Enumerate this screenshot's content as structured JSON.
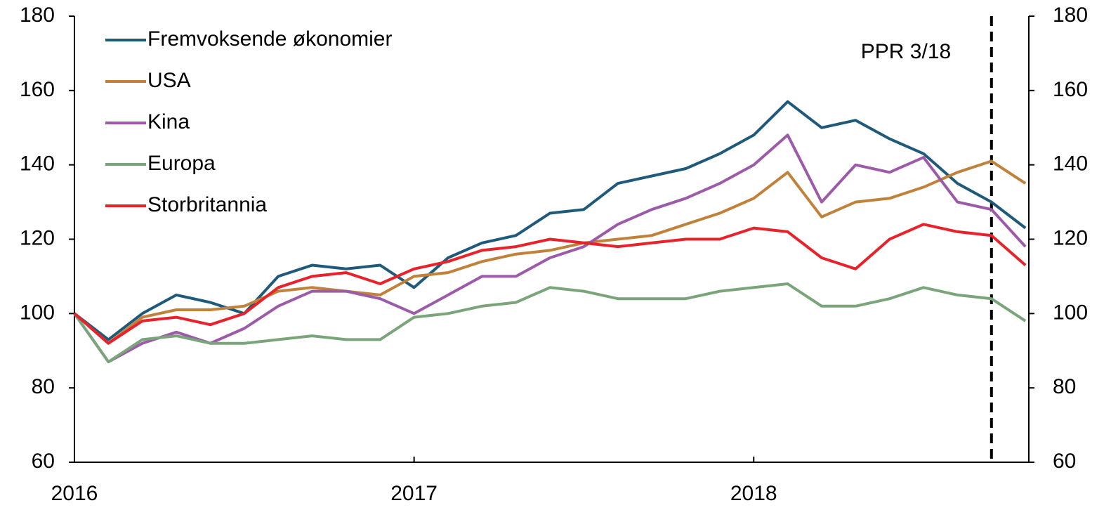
{
  "chart_data": {
    "type": "line",
    "x": [
      2016.0,
      2016.1,
      2016.2,
      2016.3,
      2016.4,
      2016.5,
      2016.6,
      2016.7,
      2016.8,
      2016.9,
      2017.0,
      2017.1,
      2017.2,
      2017.3,
      2017.4,
      2017.5,
      2017.6,
      2017.7,
      2017.8,
      2017.9,
      2018.0,
      2018.1,
      2018.2,
      2018.3,
      2018.4,
      2018.5,
      2018.6,
      2018.7,
      2018.8
    ],
    "series": [
      {
        "name": "Fremvoksende økonomier",
        "color": "#1f5a7a",
        "values": [
          100,
          93,
          100,
          105,
          103,
          100,
          110,
          113,
          112,
          113,
          107,
          115,
          119,
          121,
          127,
          128,
          135,
          137,
          139,
          143,
          148,
          157,
          150,
          152,
          147,
          143,
          135,
          130,
          123
        ]
      },
      {
        "name": "USA",
        "color": "#c0823a",
        "values": [
          100,
          92,
          99,
          101,
          101,
          102,
          106,
          107,
          106,
          105,
          110,
          111,
          114,
          116,
          117,
          119,
          120,
          121,
          124,
          127,
          131,
          138,
          126,
          130,
          131,
          134,
          138,
          141,
          135
        ]
      },
      {
        "name": "Kina",
        "color": "#9c5aa8",
        "values": [
          100,
          87,
          92,
          95,
          92,
          96,
          102,
          106,
          106,
          104,
          100,
          105,
          110,
          110,
          115,
          118,
          124,
          128,
          131,
          135,
          140,
          148,
          130,
          140,
          138,
          142,
          130,
          128,
          118
        ]
      },
      {
        "name": "Europa",
        "color": "#7aa57a",
        "values": [
          100,
          87,
          93,
          94,
          92,
          92,
          93,
          94,
          93,
          93,
          99,
          100,
          102,
          103,
          107,
          106,
          104,
          104,
          104,
          106,
          107,
          108,
          102,
          102,
          104,
          107,
          105,
          104,
          98
        ]
      },
      {
        "name": "Storbritannia",
        "color": "#e8222a",
        "values": [
          100,
          92,
          98,
          99,
          97,
          100,
          107,
          110,
          111,
          108,
          112,
          114,
          117,
          118,
          120,
          119,
          118,
          119,
          120,
          120,
          123,
          122,
          115,
          112,
          120,
          124,
          122,
          121,
          113
        ]
      }
    ],
    "xlim": [
      2016.0,
      2018.81
    ],
    "xticks": [
      2016,
      2017,
      2018
    ],
    "ylim": [
      60,
      180
    ],
    "yticks": [
      60,
      80,
      100,
      120,
      140,
      160,
      180
    ],
    "y2lim": [
      60,
      180
    ],
    "y2ticks": [
      60,
      80,
      100,
      120,
      140,
      160,
      180
    ],
    "vline": {
      "x": 2018.7,
      "label": "PPR 3/18"
    },
    "legend": "upper-left"
  }
}
